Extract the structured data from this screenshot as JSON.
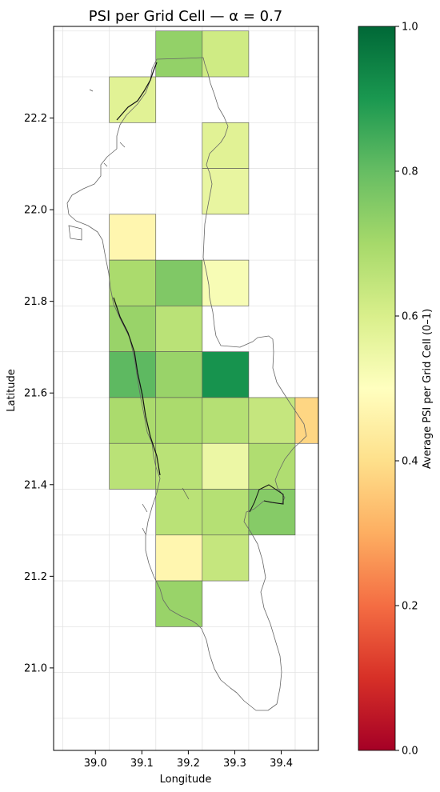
{
  "chart_data": [
    {
      "type": "heatmap",
      "title": "PSI per Grid Cell — α = 0.7",
      "xlabel": "Longitude",
      "ylabel": "Latitude",
      "xlim": [
        38.91,
        39.48
      ],
      "ylim": [
        20.82,
        22.4
      ],
      "xticks": [
        "39.0",
        "39.1",
        "39.2",
        "39.3",
        "39.4"
      ],
      "yticks": [
        "21.0",
        "21.2",
        "21.4",
        "21.6",
        "21.8",
        "22.0",
        "22.2"
      ],
      "grid": true,
      "cell_size_deg": 0.1,
      "cells": [
        {
          "lon": 39.13,
          "lat": 22.29,
          "psi": 0.73
        },
        {
          "lon": 39.03,
          "lat": 22.19,
          "psi": 0.58
        },
        {
          "lon": 39.23,
          "lat": 22.29,
          "psi": 0.62
        },
        {
          "lon": 39.23,
          "lat": 22.09,
          "psi": 0.58
        },
        {
          "lon": 39.23,
          "lat": 21.99,
          "psi": 0.56
        },
        {
          "lon": 39.03,
          "lat": 21.89,
          "psi": 0.47
        },
        {
          "lon": 39.03,
          "lat": 21.79,
          "psi": 0.69
        },
        {
          "lon": 39.13,
          "lat": 21.79,
          "psi": 0.76
        },
        {
          "lon": 39.23,
          "lat": 21.79,
          "psi": 0.52
        },
        {
          "lon": 39.03,
          "lat": 21.69,
          "psi": 0.72
        },
        {
          "lon": 39.13,
          "lat": 21.69,
          "psi": 0.66
        },
        {
          "lon": 39.03,
          "lat": 21.59,
          "psi": 0.81
        },
        {
          "lon": 39.13,
          "lat": 21.59,
          "psi": 0.72
        },
        {
          "lon": 39.23,
          "lat": 21.59,
          "psi": 0.91
        },
        {
          "lon": 39.03,
          "lat": 21.49,
          "psi": 0.69
        },
        {
          "lon": 39.13,
          "lat": 21.49,
          "psi": 0.69
        },
        {
          "lon": 39.23,
          "lat": 21.49,
          "psi": 0.67
        },
        {
          "lon": 39.33,
          "lat": 21.49,
          "psi": 0.64
        },
        {
          "lon": 39.43,
          "lat": 21.49,
          "psi": 0.38
        },
        {
          "lon": 39.03,
          "lat": 21.39,
          "psi": 0.66
        },
        {
          "lon": 39.13,
          "lat": 21.39,
          "psi": 0.66
        },
        {
          "lon": 39.23,
          "lat": 21.39,
          "psi": 0.55
        },
        {
          "lon": 39.33,
          "lat": 21.39,
          "psi": 0.68
        },
        {
          "lon": 39.13,
          "lat": 21.29,
          "psi": 0.66
        },
        {
          "lon": 39.23,
          "lat": 21.29,
          "psi": 0.67
        },
        {
          "lon": 39.33,
          "lat": 21.29,
          "psi": 0.75
        },
        {
          "lon": 39.13,
          "lat": 21.19,
          "psi": 0.47
        },
        {
          "lon": 39.23,
          "lat": 21.19,
          "psi": 0.64
        },
        {
          "lon": 39.13,
          "lat": 21.09,
          "psi": 0.72
        }
      ]
    },
    {
      "type": "heatmap",
      "colorbar_label": "Average PSI per Grid Cell (0–1)",
      "colormap": "RdYlGn",
      "range": [
        0.0,
        1.0
      ],
      "ticks": [
        "0.0",
        "0.2",
        "0.4",
        "0.6",
        "0.8",
        "1.0"
      ]
    }
  ]
}
